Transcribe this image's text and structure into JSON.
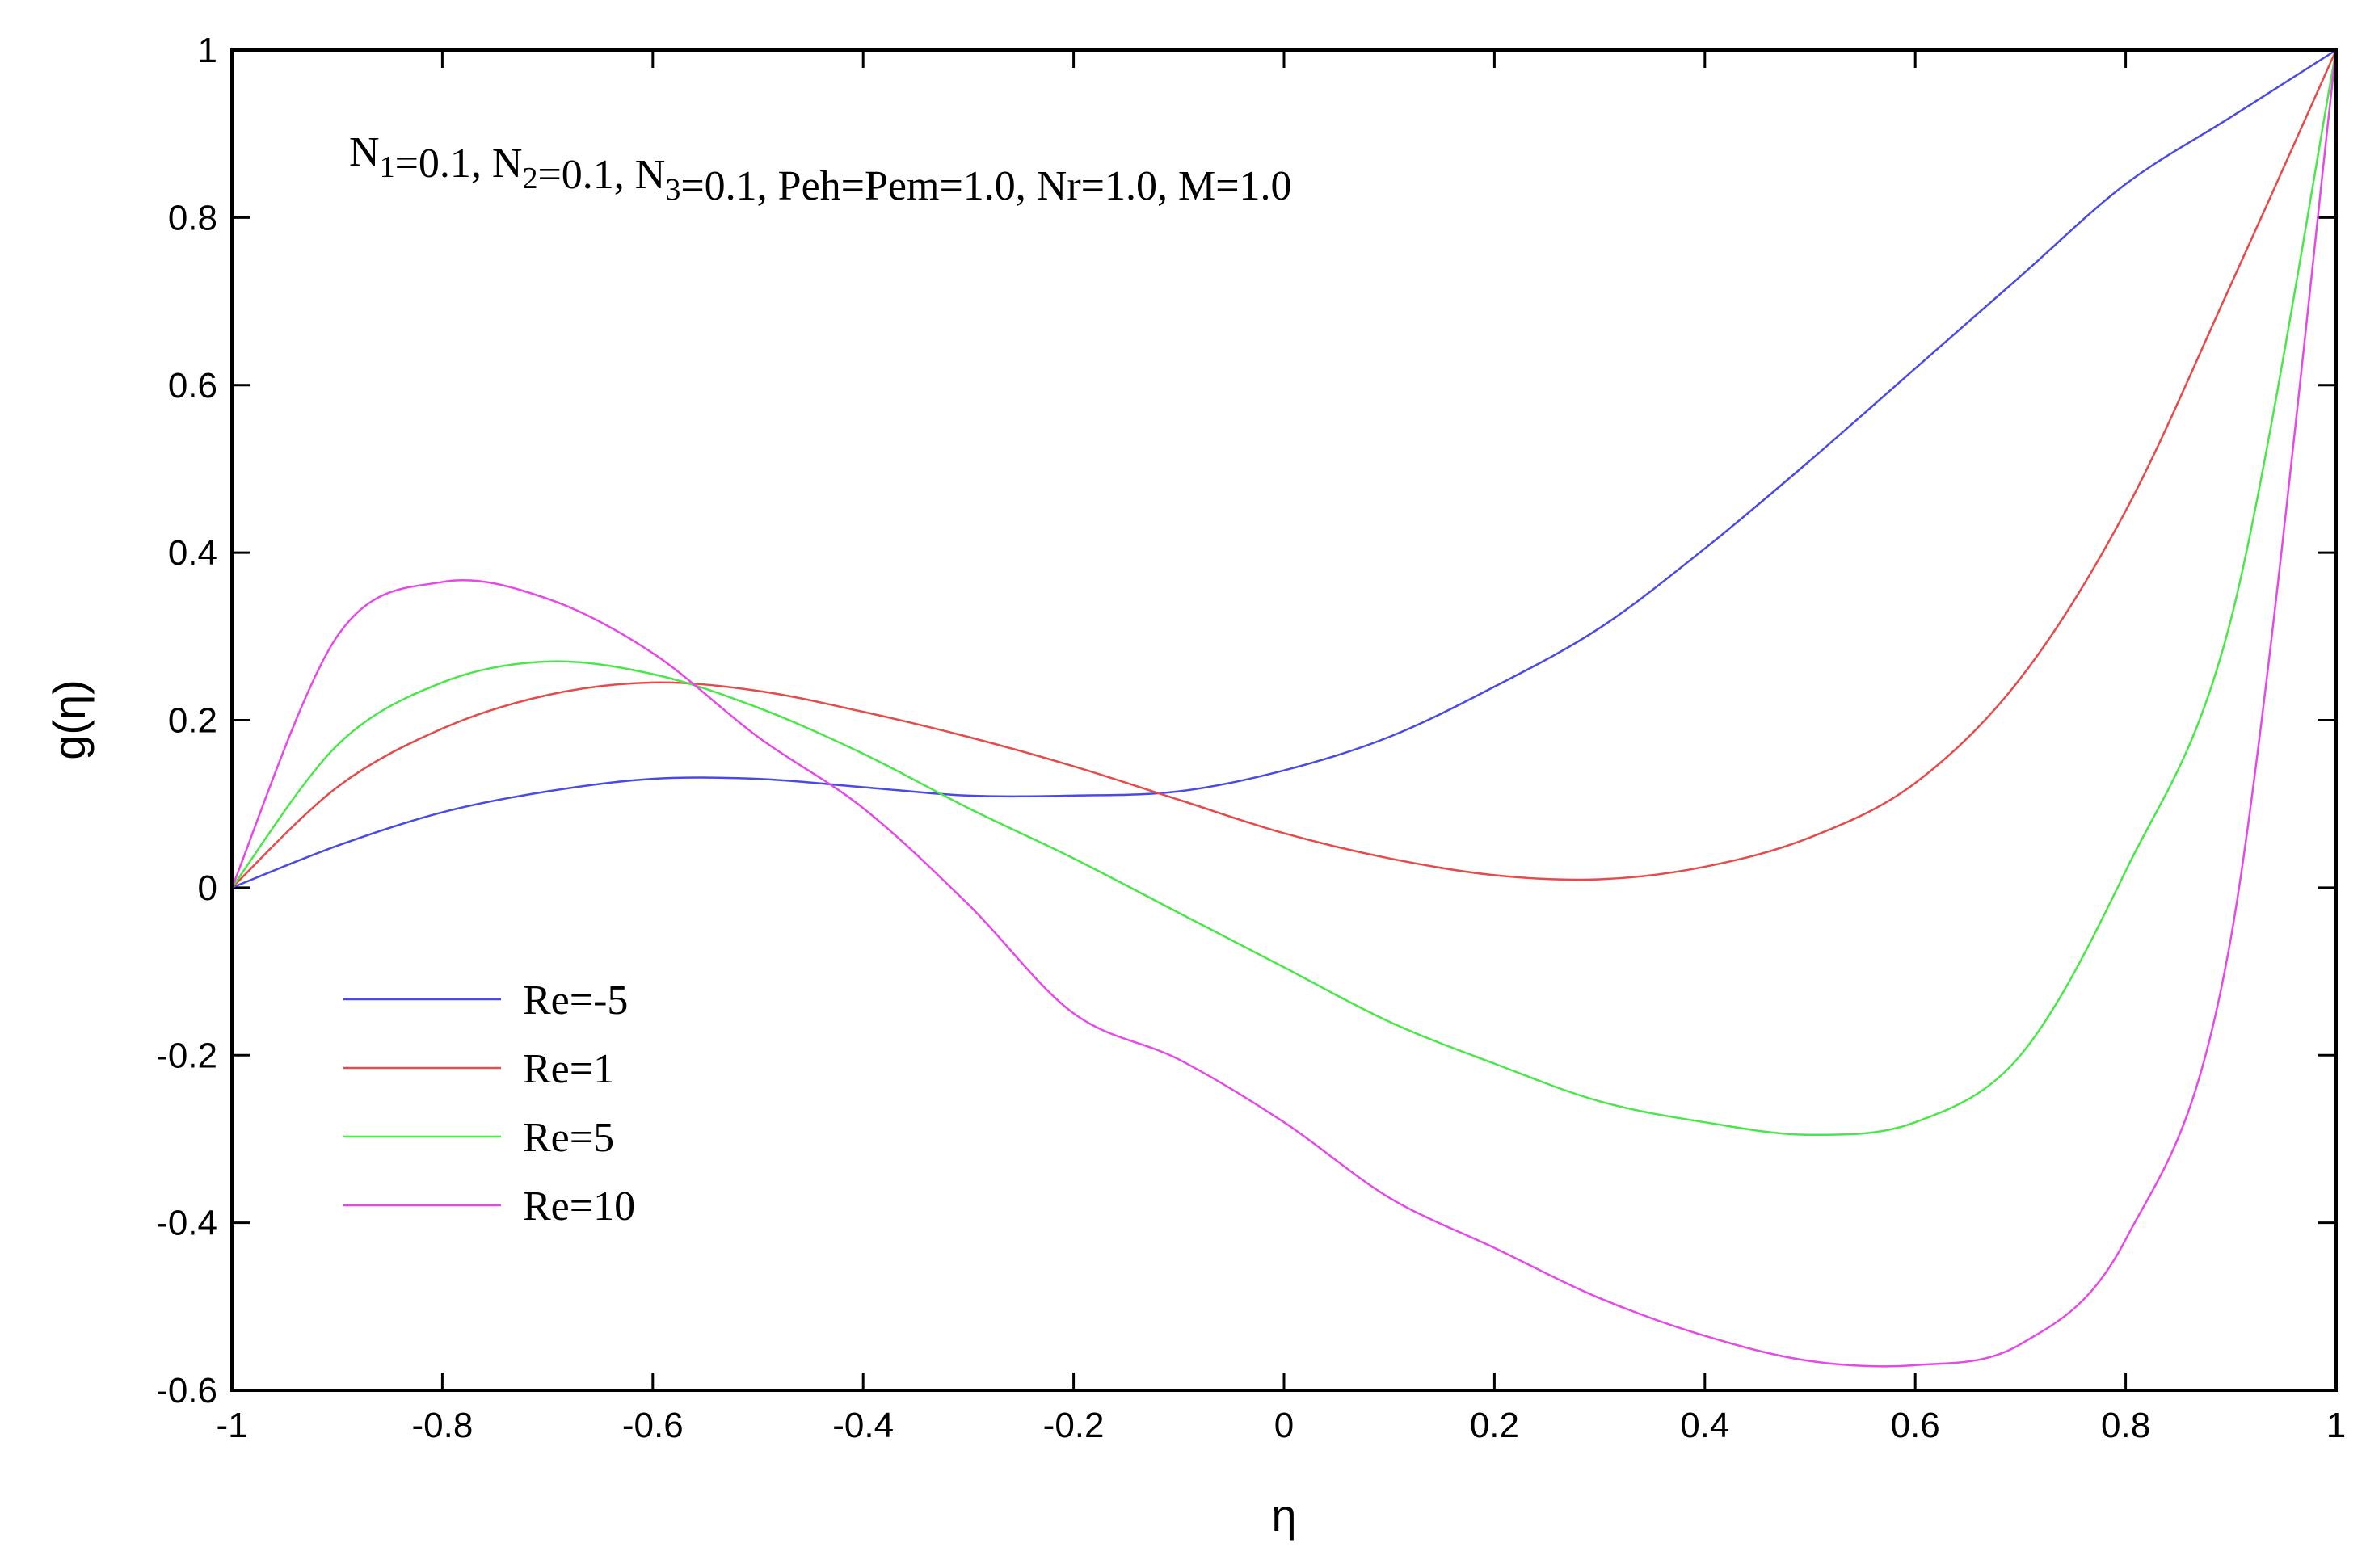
{
  "chart_data": {
    "type": "line",
    "xlabel": "η",
    "ylabel": "g(η)",
    "xlim": [
      -1,
      1
    ],
    "ylim": [
      -0.6,
      1
    ],
    "x_ticks": [
      "-1",
      "-0.8",
      "-0.6",
      "-0.4",
      "-0.2",
      "0",
      "0.2",
      "0.4",
      "0.6",
      "0.8",
      "1"
    ],
    "y_ticks": [
      "-0.6",
      "-0.4",
      "-0.2",
      "0",
      "0.2",
      "0.4",
      "0.6",
      "0.8",
      "1"
    ],
    "grid": false,
    "legend_position": "lower-left",
    "annotation": {
      "parts": [
        {
          "text": "N",
          "sub": "1"
        },
        {
          "text": "=0.1, N",
          "sub": "2"
        },
        {
          "text": "=0.1, N",
          "sub": "3"
        },
        {
          "text": "=0.1, Peh=Pem=1.0, Nr=1.0, M=1.0",
          "sub": ""
        }
      ]
    },
    "series": [
      {
        "name": "Re=-5",
        "color": "#4a4ae6",
        "x": [
          -1,
          -0.9,
          -0.8,
          -0.7,
          -0.6,
          -0.5,
          -0.4,
          -0.3,
          -0.2,
          -0.1,
          0,
          0.1,
          0.2,
          0.3,
          0.4,
          0.5,
          0.6,
          0.7,
          0.8,
          0.9,
          1
        ],
        "y": [
          0,
          0.05,
          0.09,
          0.115,
          0.13,
          0.13,
          0.12,
          0.11,
          0.11,
          0.115,
          0.14,
          0.18,
          0.24,
          0.31,
          0.405,
          0.51,
          0.62,
          0.73,
          0.84,
          0.92,
          1.0
        ]
      },
      {
        "name": "Re=1",
        "color": "#e64a4a",
        "x": [
          -1,
          -0.9,
          -0.8,
          -0.7,
          -0.6,
          -0.5,
          -0.4,
          -0.3,
          -0.2,
          -0.1,
          0,
          0.1,
          0.2,
          0.3,
          0.4,
          0.5,
          0.6,
          0.7,
          0.8,
          0.9,
          1
        ],
        "y": [
          0,
          0.12,
          0.19,
          0.23,
          0.245,
          0.235,
          0.21,
          0.18,
          0.145,
          0.105,
          0.065,
          0.035,
          0.015,
          0.01,
          0.025,
          0.06,
          0.125,
          0.25,
          0.45,
          0.72,
          1.0
        ]
      },
      {
        "name": "Re=5",
        "color": "#4ae64a",
        "x": [
          -1,
          -0.9,
          -0.8,
          -0.7,
          -0.6,
          -0.5,
          -0.4,
          -0.3,
          -0.2,
          -0.1,
          0,
          0.1,
          0.2,
          0.3,
          0.4,
          0.5,
          0.6,
          0.7,
          0.8,
          0.9,
          1
        ],
        "y": [
          0,
          0.17,
          0.245,
          0.27,
          0.255,
          0.215,
          0.16,
          0.095,
          0.035,
          -0.03,
          -0.095,
          -0.16,
          -0.21,
          -0.255,
          -0.28,
          -0.295,
          -0.28,
          -0.2,
          0.02,
          0.32,
          1.0
        ]
      },
      {
        "name": "Re=10",
        "color": "#e64ae6",
        "x": [
          -1,
          -0.9,
          -0.8,
          -0.7,
          -0.6,
          -0.5,
          -0.4,
          -0.3,
          -0.2,
          -0.1,
          0,
          0.1,
          0.2,
          0.3,
          0.4,
          0.5,
          0.6,
          0.7,
          0.8,
          0.9,
          1
        ],
        "y": [
          0,
          0.3,
          0.365,
          0.345,
          0.28,
          0.18,
          0.095,
          -0.02,
          -0.15,
          -0.205,
          -0.28,
          -0.37,
          -0.43,
          -0.49,
          -0.535,
          -0.565,
          -0.57,
          -0.545,
          -0.42,
          -0.06,
          1.0
        ]
      }
    ]
  }
}
